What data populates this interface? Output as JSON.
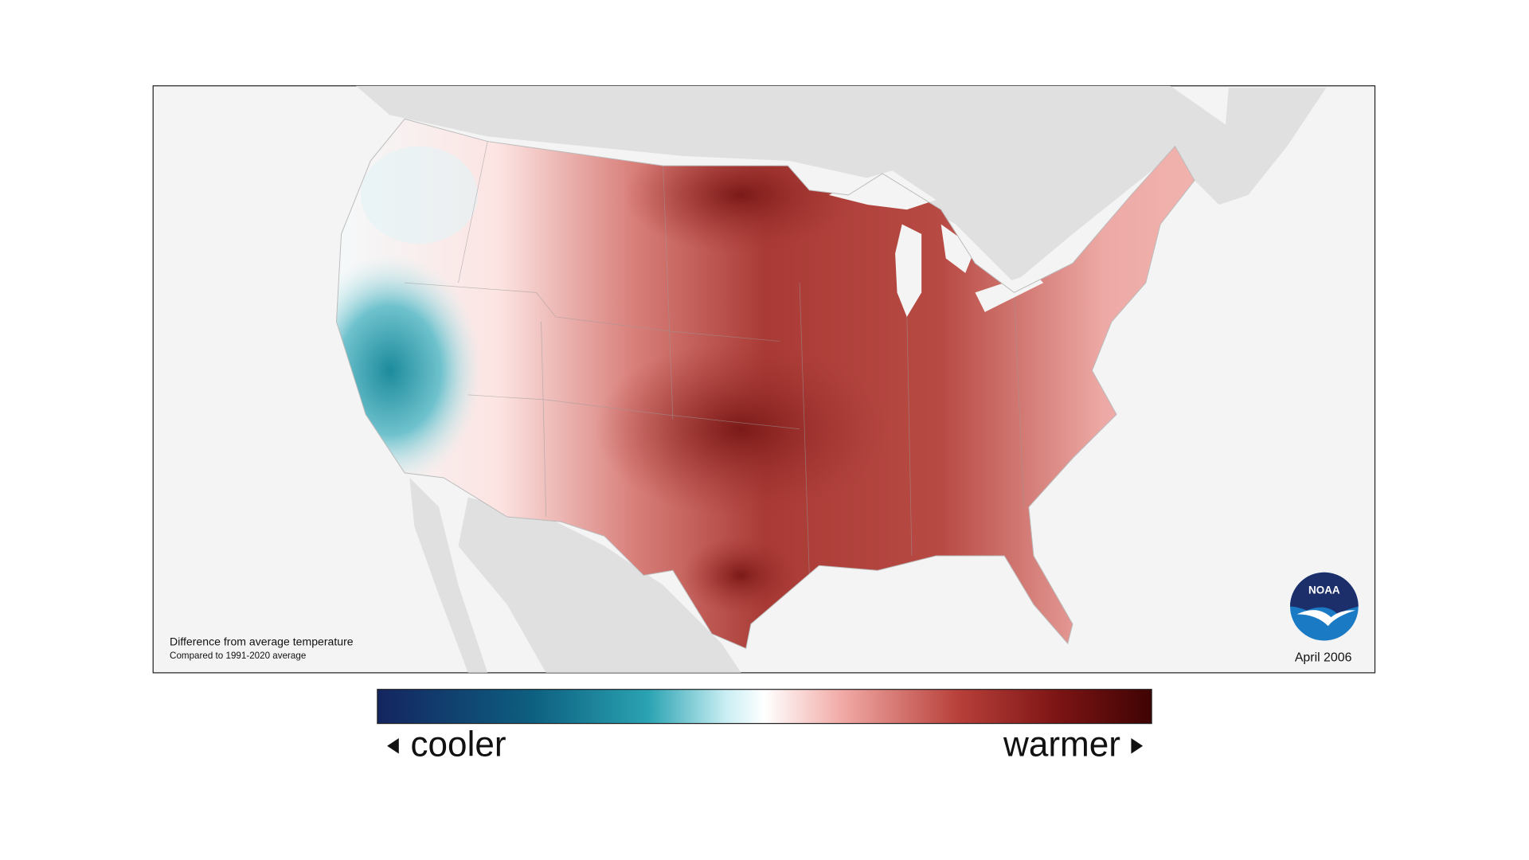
{
  "map": {
    "title": "Difference from average temperature",
    "subtitle": "Compared to 1991-2020 average",
    "date": "April 2006"
  },
  "logo": {
    "label": "NOAA"
  },
  "legend": {
    "low_label": "cooler",
    "high_label": "warmer"
  }
}
